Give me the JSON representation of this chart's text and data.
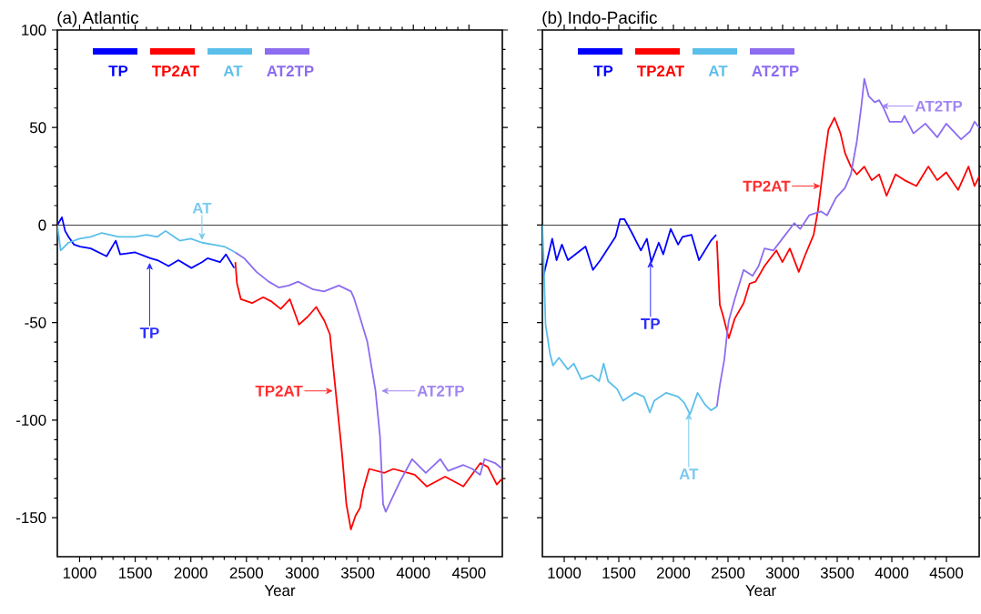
{
  "chart_data": [
    {
      "type": "line",
      "title": "(a) Atlantic",
      "xlabel": "Year",
      "xlim": [
        800,
        4800
      ],
      "ylim": [
        -170,
        100
      ],
      "xticks": [
        1000,
        1500,
        2000,
        2500,
        3000,
        3500,
        4000,
        4500
      ],
      "yticks": [
        -150,
        -100,
        -50,
        0,
        50,
        100
      ],
      "legend": "top left",
      "grid": false,
      "marker": "none",
      "line_style": "solid",
      "ref_lines": [
        {
          "axis": "y",
          "value": 0,
          "color": "#000000"
        }
      ],
      "series": [
        {
          "name": "TP",
          "color": "#0000ff",
          "x": [
            800,
            841,
            870,
            900,
            950,
            1005,
            1100,
            1243,
            1325,
            1365,
            1500,
            1636,
            1700,
            1800,
            1888,
            2005,
            2100,
            2150,
            2262,
            2316,
            2390
          ],
          "values": [
            0,
            4,
            -3,
            -6,
            -10,
            -11,
            -12,
            -16,
            -8,
            -15,
            -14,
            -17,
            -18,
            -21,
            -18,
            -22,
            -19,
            -17,
            -19,
            -15,
            -22
          ]
        },
        {
          "name": "TP2AT",
          "color": "#ff0000",
          "x": [
            2400,
            2415,
            2450,
            2550,
            2650,
            2720,
            2808,
            2890,
            2972,
            3050,
            3127,
            3200,
            3250,
            3300,
            3357,
            3398,
            3439,
            3480,
            3521,
            3549,
            3603,
            3740,
            3820,
            4013,
            4122,
            4286,
            4450,
            4603,
            4670,
            4750,
            4800
          ],
          "values": [
            -19,
            -30,
            -38,
            -40,
            -37,
            -39,
            -43,
            -38,
            -51,
            -47,
            -42,
            -49,
            -56,
            -84,
            -116,
            -143,
            -156,
            -149,
            -145,
            -136,
            -125,
            -127,
            -125,
            -128,
            -134,
            -129,
            -134,
            -122,
            -124,
            -133,
            -130
          ]
        },
        {
          "name": "AT",
          "color": "#5bbfea",
          "x": [
            800,
            830,
            900,
            1000,
            1100,
            1200,
            1350,
            1500,
            1600,
            1700,
            1773,
            1900,
            2000,
            2100,
            2200,
            2300,
            2400
          ],
          "values": [
            0,
            -13,
            -9,
            -7,
            -6,
            -4,
            -6,
            -6,
            -5,
            -6,
            -3,
            -8,
            -7,
            -9,
            -10,
            -11,
            -14
          ]
        },
        {
          "name": "AT2TP",
          "color": "#8c6cf0",
          "x": [
            2400,
            2480,
            2590,
            2700,
            2790,
            2880,
            2964,
            3100,
            3197,
            3331,
            3440,
            3464,
            3519,
            3587,
            3660,
            3700,
            3728,
            3752,
            3875,
            3989,
            4112,
            4243,
            4313,
            4450,
            4530,
            4600,
            4640,
            4735,
            4800
          ],
          "values": [
            -14,
            -17,
            -24,
            -29,
            -32,
            -31,
            -29,
            -33,
            -34,
            -31,
            -34,
            -37,
            -47,
            -60,
            -85,
            -108,
            -143,
            -147,
            -132,
            -120,
            -127,
            -120,
            -126,
            -123,
            -125,
            -128,
            -120,
            -122,
            -125
          ]
        }
      ],
      "annotations": [
        {
          "text": "TP",
          "x": 1630,
          "y": -18
        },
        {
          "text": "TP2AT",
          "x": 3300,
          "y": -85
        },
        {
          "text": "AT",
          "x": 2100,
          "y": -9
        },
        {
          "text": "AT2TP",
          "x": 3690,
          "y": -85
        }
      ]
    },
    {
      "type": "line",
      "title": "(b) Indo-Pacific",
      "xlabel": "Year",
      "xlim": [
        800,
        4800
      ],
      "ylim": [
        -170,
        100
      ],
      "xticks": [
        1000,
        1500,
        2000,
        2500,
        3000,
        3500,
        4000,
        4500
      ],
      "yticks": [
        -150,
        -100,
        -50,
        0,
        50,
        100
      ],
      "tick_labels": "x",
      "legend": "top left",
      "grid": false,
      "marker": "none",
      "line_style": "solid",
      "ref_lines": [
        {
          "axis": "y",
          "value": 0,
          "color": "#000000"
        }
      ],
      "series": [
        {
          "name": "TP",
          "color": "#0000ff",
          "x": [
            810,
            890,
            930,
            979,
            1034,
            1195,
            1263,
            1331,
            1470,
            1511,
            1552,
            1620,
            1702,
            1757,
            1798,
            1866,
            1907,
            1975,
            2043,
            2084,
            2166,
            2234,
            2343,
            2392
          ],
          "values": [
            -26,
            -7,
            -18,
            -10,
            -18,
            -11,
            -23,
            -18,
            -6,
            3,
            3,
            -4,
            -13,
            -7,
            -19,
            -9,
            -15,
            -2,
            -10,
            -6,
            -5,
            -18,
            -8,
            -5
          ]
        },
        {
          "name": "TP2AT",
          "color": "#ff0000",
          "x": [
            2398,
            2425,
            2452,
            2507,
            2561,
            2643,
            2698,
            2752,
            2834,
            2943,
            2998,
            3066,
            3148,
            3202,
            3284,
            3325,
            3380,
            3420,
            3475,
            3530,
            3571,
            3625,
            3680,
            3748,
            3816,
            3884,
            3952,
            4034,
            4116,
            4225,
            4334,
            4416,
            4498,
            4607,
            4702,
            4757,
            4800
          ],
          "values": [
            -8,
            -41,
            -46,
            -58,
            -48,
            -40,
            -30,
            -29,
            -21,
            -13,
            -19,
            -12,
            -24,
            -16,
            -5,
            8,
            33,
            49,
            55,
            47,
            37,
            30,
            26,
            30,
            23,
            26,
            15,
            26,
            23,
            20,
            30,
            23,
            27,
            18,
            30,
            20,
            25
          ]
        },
        {
          "name": "AT",
          "color": "#5bbfea",
          "x": [
            800,
            810,
            829,
            870,
            897,
            952,
            1034,
            1088,
            1156,
            1252,
            1320,
            1361,
            1402,
            1484,
            1538,
            1648,
            1730,
            1784,
            1825,
            1934,
            2043,
            2098,
            2152,
            2221,
            2289,
            2343,
            2398
          ],
          "values": [
            0,
            -15,
            -51,
            -66,
            -72,
            -68,
            -74,
            -71,
            -79,
            -77,
            -80,
            -71,
            -80,
            -84,
            -90,
            -86,
            -88,
            -96,
            -90,
            -86,
            -88,
            -91,
            -97,
            -86,
            -92,
            -95,
            -93
          ]
        },
        {
          "name": "AT2TP",
          "color": "#8c6cf0",
          "x": [
            2398,
            2425,
            2466,
            2493,
            2507,
            2561,
            2643,
            2725,
            2780,
            2834,
            2916,
            3025,
            3107,
            3161,
            3243,
            3352,
            3407,
            3489,
            3571,
            3625,
            3680,
            3721,
            3748,
            3789,
            3843,
            3884,
            3925,
            3980,
            4089,
            4116,
            4198,
            4307,
            4416,
            4498,
            4634,
            4716,
            4757,
            4800
          ],
          "values": [
            -93,
            -82,
            -69,
            -55,
            -49,
            -38,
            -23,
            -26,
            -21,
            -12,
            -13,
            -5,
            1,
            -2,
            5,
            7,
            5,
            14,
            19,
            26,
            43,
            61,
            75,
            66,
            63,
            64,
            60,
            53,
            53,
            56,
            47,
            52,
            45,
            52,
            44,
            48,
            53,
            50
          ]
        }
      ],
      "annotations": [
        {
          "text": "TP",
          "x": 1790,
          "y": -17
        },
        {
          "text": "TP2AT",
          "x": 3370,
          "y": 20
        },
        {
          "text": "AT",
          "x": 2140,
          "y": -95
        },
        {
          "text": "AT2TP",
          "x": 3880,
          "y": 61
        }
      ]
    }
  ]
}
